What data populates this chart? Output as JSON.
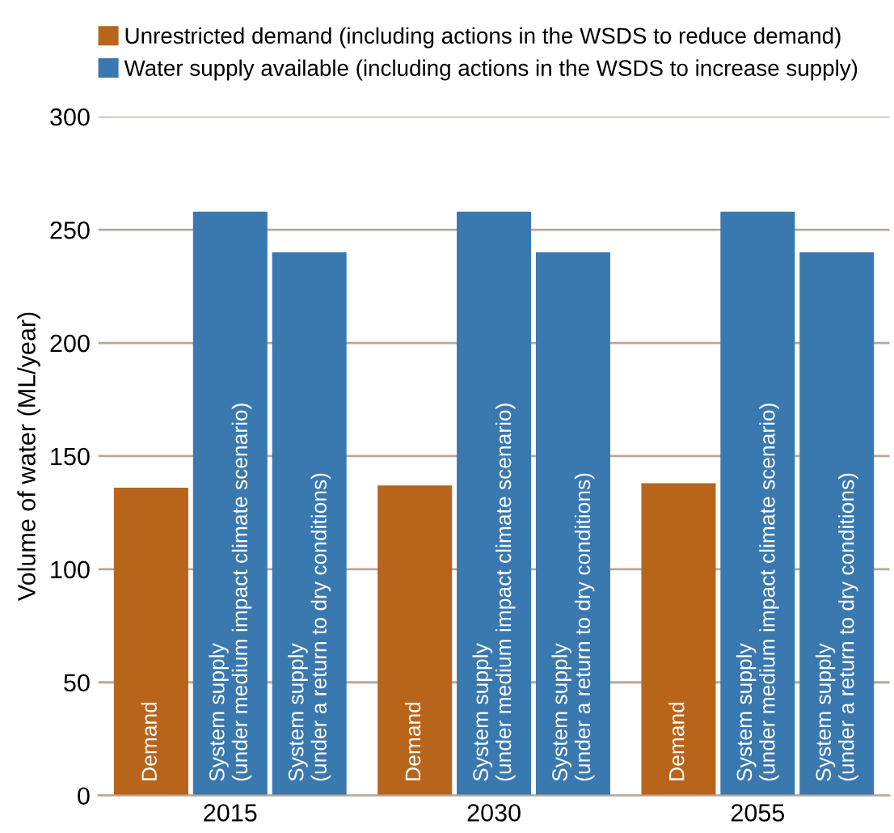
{
  "chart_data": {
    "type": "bar",
    "ylabel": "Volume of water (ML/year)",
    "categories": [
      "2015",
      "2030",
      "2055"
    ],
    "series": [
      {
        "name": "Unrestricted demand (including actions in the WSDS to reduce demand)",
        "color": "#b8651b",
        "values": [
          136,
          137,
          138
        ]
      },
      {
        "name": "Water supply available (including actions in the WSDS to increase supply)",
        "color": "#3a78b0",
        "values": [
          258,
          258,
          258
        ]
      },
      {
        "color": "#3a78b0",
        "values": [
          240,
          240,
          240
        ]
      }
    ],
    "annotations": [
      "Demand",
      "System supply\n(under medium impact climate scenario)",
      "System supply\n(under a return to dry conditions)",
      "Demand",
      "System supply\n(under medium impact climate scenario)",
      "System supply\n(under a return to dry conditions)",
      "Demand",
      "System supply\n(under medium impact climate scenario)",
      "System supply\n(under a return to dry conditions)"
    ],
    "ylim": [
      0,
      300
    ],
    "yticks": [
      0,
      50,
      100,
      150,
      200,
      250,
      300
    ],
    "grid": "y",
    "legend": "top left"
  }
}
